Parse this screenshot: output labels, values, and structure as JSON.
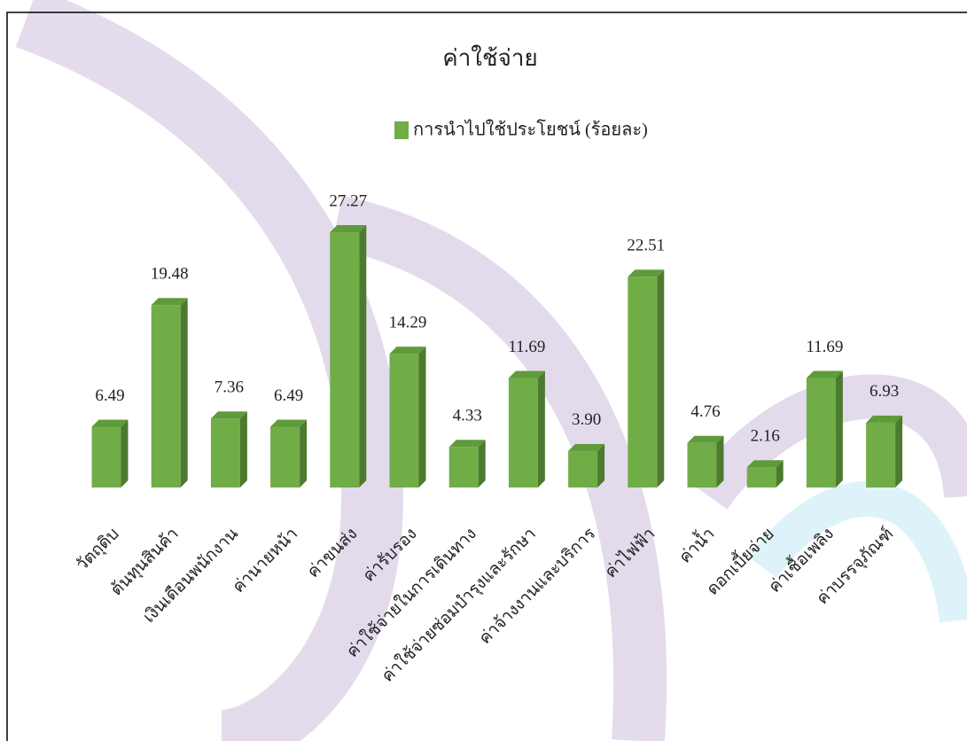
{
  "chart_data": {
    "type": "bar3d",
    "title": "ค่าใช้จ่าย",
    "categories": [
      "วัตถุดิบ",
      "ต้นทุนสินค้า",
      "เงินเดือนพนักงาน",
      "ค่านายหน้า",
      "ค่าขนส่ง",
      "ค่ารับรอง",
      "ค่าใช้จ่ายในการเดินทาง",
      "ค่าใช้จ่ายซ่อมบำรุงและรักษา",
      "ค่าจ้างงานและบริการ",
      "ค่าไฟฟ้า",
      "ค่าน้ำ",
      "ดอกเบี้ยจ่าย",
      "ค่าเชื้อเพลิง",
      "ค่าบรรจุภัณฑ์"
    ],
    "series": [
      {
        "name": "การนำไปใช้ประโยชน์ (ร้อยละ)",
        "color": "#70ad47",
        "values": [
          6.49,
          19.48,
          7.36,
          6.49,
          27.27,
          14.29,
          4.33,
          11.69,
          3.9,
          22.51,
          4.76,
          2.16,
          11.69,
          6.93
        ],
        "value_labels": [
          "6.49",
          "19.48",
          "7.36",
          "6.49",
          "27.27",
          "14.29",
          "4.33",
          "11.69",
          "3.90",
          "22.51",
          "4.76",
          "2.16",
          "11.69",
          "6.93"
        ]
      }
    ]
  }
}
